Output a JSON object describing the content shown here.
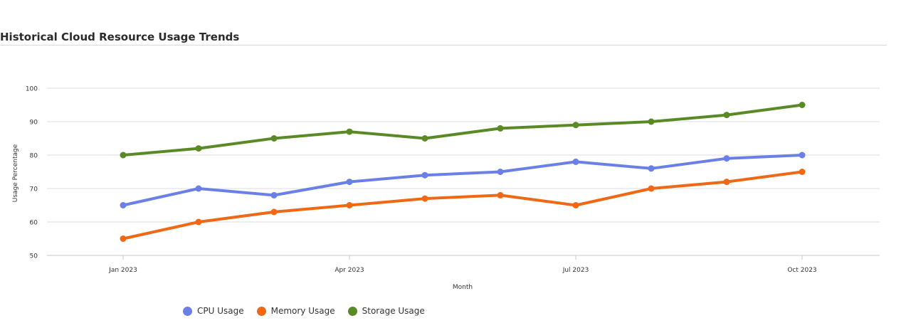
{
  "page": {
    "title": "Historical Cloud Resource Usage Trends"
  },
  "chart_data": {
    "type": "line",
    "title": "Historical Cloud Resource Usage Trends",
    "xlabel": "Month",
    "ylabel": "Usage Percentage",
    "x": [
      "2023-01",
      "2023-02",
      "2023-03",
      "2023-04",
      "2023-05",
      "2023-06",
      "2023-07",
      "2023-08",
      "2023-09",
      "2023-10"
    ],
    "x_tick_labels": [
      {
        "x": "2023-01",
        "label": "Jan 2023"
      },
      {
        "x": "2023-04",
        "label": "Apr 2023"
      },
      {
        "x": "2023-07",
        "label": "Jul 2023"
      },
      {
        "x": "2023-10",
        "label": "Oct 2023"
      }
    ],
    "xlim": [
      "2022-11",
      "2023-12"
    ],
    "ylim": [
      50,
      100
    ],
    "yticks": [
      50,
      60,
      70,
      80,
      90,
      100
    ],
    "grid": true,
    "legend_position": "bottom-left",
    "series": [
      {
        "name": "CPU Usage",
        "color": "#6a7fe8",
        "values": [
          65,
          70,
          68,
          72,
          74,
          75,
          78,
          76,
          79,
          80
        ]
      },
      {
        "name": "Memory Usage",
        "color": "#f06814",
        "values": [
          55,
          60,
          63,
          65,
          67,
          68,
          65,
          70,
          72,
          75
        ]
      },
      {
        "name": "Storage Usage",
        "color": "#5a8a26",
        "values": [
          80,
          82,
          85,
          87,
          85,
          88,
          89,
          90,
          92,
          95
        ]
      }
    ]
  }
}
